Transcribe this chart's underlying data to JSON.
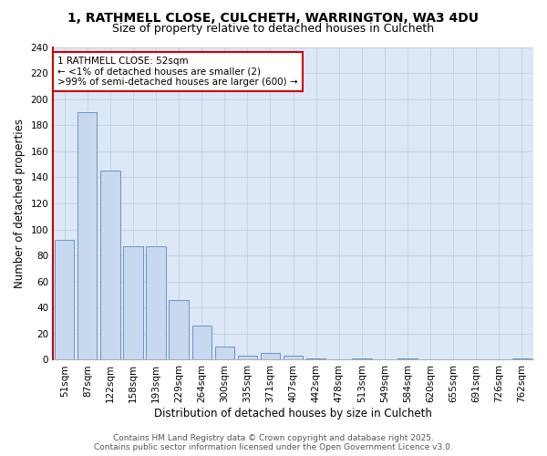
{
  "title1": "1, RATHMELL CLOSE, CULCHETH, WARRINGTON, WA3 4DU",
  "title2": "Size of property relative to detached houses in Culcheth",
  "xlabel": "Distribution of detached houses by size in Culcheth",
  "ylabel": "Number of detached properties",
  "categories": [
    "51sqm",
    "87sqm",
    "122sqm",
    "158sqm",
    "193sqm",
    "229sqm",
    "264sqm",
    "300sqm",
    "335sqm",
    "371sqm",
    "407sqm",
    "442sqm",
    "478sqm",
    "513sqm",
    "549sqm",
    "584sqm",
    "620sqm",
    "655sqm",
    "691sqm",
    "726sqm",
    "762sqm"
  ],
  "values": [
    92,
    190,
    145,
    87,
    87,
    46,
    26,
    10,
    3,
    5,
    3,
    1,
    0,
    1,
    0,
    1,
    0,
    0,
    0,
    0,
    1
  ],
  "bar_color": "#c8d8ef",
  "bar_edge_color": "#6496c8",
  "ylim": [
    0,
    240
  ],
  "yticks": [
    0,
    20,
    40,
    60,
    80,
    100,
    120,
    140,
    160,
    180,
    200,
    220,
    240
  ],
  "annotation_title": "1 RATHMELL CLOSE: 52sqm",
  "annotation_line1": "← <1% of detached houses are smaller (2)",
  "annotation_line2": ">99% of semi-detached houses are larger (600) →",
  "annotation_box_color": "#ffffff",
  "annotation_box_edge_color": "#cc0000",
  "bg_color": "#dce8f5",
  "left_border_color": "#cc0000",
  "footer1": "Contains HM Land Registry data © Crown copyright and database right 2025.",
  "footer2": "Contains public sector information licensed under the Open Government Licence v3.0.",
  "grid_color": "#b8cce4",
  "title_fontsize": 10,
  "subtitle_fontsize": 9,
  "axis_label_fontsize": 8.5,
  "tick_fontsize": 7.5,
  "annotation_fontsize": 7.5,
  "footer_fontsize": 6.5
}
